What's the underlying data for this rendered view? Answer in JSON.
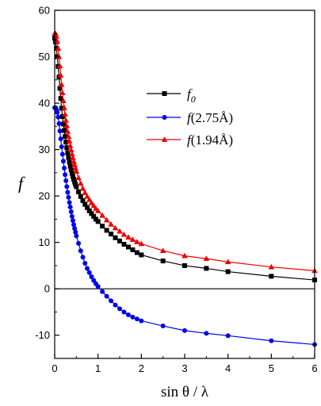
{
  "chart_data": {
    "type": "line",
    "title": "",
    "xlabel": "sin θ / λ",
    "ylabel": "f",
    "xlim": [
      0,
      6
    ],
    "ylim": [
      -15,
      60
    ],
    "xticks": [
      0,
      1,
      2,
      3,
      4,
      5,
      6
    ],
    "yticks": [
      -10,
      0,
      10,
      20,
      30,
      40,
      50,
      60
    ],
    "grid": false,
    "zero_line": true,
    "legend_position": "upper-right-center",
    "series": [
      {
        "name": "f0",
        "legend_base": "f",
        "legend_sub": "0",
        "color": "#000000",
        "marker": "square",
        "x": [
          0.0,
          0.02,
          0.04,
          0.06,
          0.08,
          0.1,
          0.12,
          0.14,
          0.16,
          0.18,
          0.2,
          0.22,
          0.24,
          0.26,
          0.28,
          0.3,
          0.32,
          0.34,
          0.36,
          0.38,
          0.4,
          0.42,
          0.44,
          0.46,
          0.48,
          0.5,
          0.55,
          0.6,
          0.65,
          0.7,
          0.75,
          0.8,
          0.85,
          0.9,
          0.95,
          1.0,
          1.1,
          1.2,
          1.3,
          1.4,
          1.5,
          1.6,
          1.7,
          1.8,
          1.9,
          2.0,
          2.5,
          3.0,
          3.5,
          4.0,
          5.0,
          6.0
        ],
        "y": [
          54.0,
          53.2,
          51.8,
          50.0,
          47.9,
          45.6,
          43.2,
          41.0,
          38.9,
          37.1,
          35.5,
          34.1,
          32.8,
          31.6,
          30.4,
          29.3,
          28.3,
          27.3,
          26.4,
          25.6,
          24.9,
          24.2,
          23.6,
          23.0,
          22.5,
          22.0,
          20.9,
          19.9,
          19.0,
          18.2,
          17.5,
          16.8,
          16.2,
          15.6,
          15.0,
          14.5,
          13.5,
          12.6,
          11.8,
          11.0,
          10.3,
          9.6,
          9.0,
          8.4,
          7.8,
          7.3,
          6.0,
          5.0,
          4.4,
          3.7,
          2.7,
          1.9
        ]
      },
      {
        "name": "f(2.75Å)",
        "legend_base": "f",
        "legend_suffix": "(2.75Å)",
        "color": "#0000ee",
        "marker": "circle",
        "x": [
          0.0,
          0.02,
          0.04,
          0.06,
          0.08,
          0.1,
          0.12,
          0.14,
          0.16,
          0.18,
          0.2,
          0.22,
          0.24,
          0.26,
          0.28,
          0.3,
          0.32,
          0.34,
          0.36,
          0.38,
          0.4,
          0.42,
          0.44,
          0.46,
          0.48,
          0.5,
          0.55,
          0.6,
          0.65,
          0.7,
          0.75,
          0.8,
          0.85,
          0.9,
          0.95,
          1.0,
          1.1,
          1.2,
          1.3,
          1.4,
          1.5,
          1.6,
          1.7,
          1.8,
          1.9,
          2.0,
          2.5,
          3.0,
          3.5,
          4.0,
          5.0,
          6.0
        ],
        "y": [
          39.0,
          39.0,
          38.6,
          38.0,
          37.0,
          35.6,
          34.0,
          32.3,
          30.6,
          29.0,
          27.5,
          26.0,
          24.6,
          23.3,
          22.0,
          20.8,
          19.7,
          18.6,
          17.6,
          16.6,
          15.6,
          14.7,
          13.8,
          13.0,
          12.2,
          11.4,
          9.8,
          8.2,
          6.8,
          5.5,
          4.4,
          3.5,
          2.6,
          1.8,
          1.1,
          0.5,
          -0.6,
          -1.6,
          -2.6,
          -3.5,
          -4.3,
          -5.0,
          -5.6,
          -6.1,
          -6.5,
          -6.9,
          -8.0,
          -9.0,
          -9.6,
          -10.1,
          -11.2,
          -12.0
        ]
      },
      {
        "name": "f(1.94Å)",
        "legend_base": "f",
        "legend_suffix": "(1.94Å)",
        "color": "#ee0000",
        "marker": "triangle",
        "x": [
          0.0,
          0.02,
          0.04,
          0.06,
          0.08,
          0.1,
          0.12,
          0.14,
          0.16,
          0.18,
          0.2,
          0.22,
          0.24,
          0.26,
          0.28,
          0.3,
          0.32,
          0.34,
          0.36,
          0.38,
          0.4,
          0.42,
          0.44,
          0.46,
          0.48,
          0.5,
          0.55,
          0.6,
          0.65,
          0.7,
          0.75,
          0.8,
          0.85,
          0.9,
          0.95,
          1.0,
          1.1,
          1.2,
          1.3,
          1.4,
          1.5,
          1.6,
          1.7,
          1.8,
          1.9,
          2.0,
          2.5,
          3.0,
          3.5,
          4.0,
          5.0,
          6.0
        ],
        "y": [
          55.0,
          55.0,
          54.4,
          53.3,
          51.8,
          50.0,
          48.0,
          46.0,
          44.0,
          42.2,
          40.5,
          39.0,
          37.6,
          36.3,
          35.1,
          33.9,
          32.8,
          31.8,
          30.8,
          29.9,
          29.0,
          28.2,
          27.4,
          26.7,
          26.0,
          25.3,
          23.9,
          22.7,
          21.6,
          20.7,
          19.9,
          19.2,
          18.5,
          17.9,
          17.3,
          16.8,
          15.8,
          14.8,
          13.9,
          13.1,
          12.4,
          11.7,
          11.1,
          10.6,
          10.1,
          9.7,
          8.2,
          7.1,
          6.5,
          5.8,
          4.7,
          3.9
        ]
      }
    ]
  }
}
